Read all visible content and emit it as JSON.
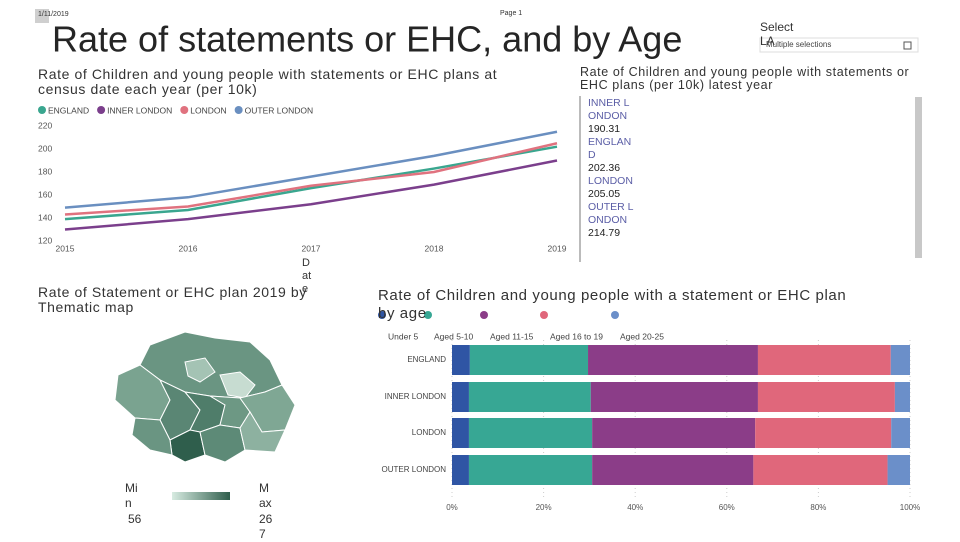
{
  "header": {
    "date": "1/11/2019",
    "page": "Page 1",
    "title": "Rate of statements or EHC, and by Age"
  },
  "slicer": {
    "label": "Select LA",
    "value": "Multiple selections"
  },
  "card": {
    "title": "Rate of Children and young people with statements or EHC plans (per 10k) latest year",
    "rows": [
      {
        "name": "INNER LONDON",
        "value": 190.31
      },
      {
        "name": "ENGLAND",
        "value": 202.36
      },
      {
        "name": "LONDON",
        "value": 205.05
      },
      {
        "name": "OUTER LONDON",
        "value": 214.79
      }
    ]
  },
  "map": {
    "title": "Rate of Statement or EHC plan 2019 by Thematic map",
    "min_label": "Min",
    "min": 56,
    "max_label": "Max",
    "max": 267
  },
  "chart_data": [
    {
      "type": "line",
      "title": "Rate of Children and young people with statements or EHC plans at census date each year (per 10k)",
      "x_label": "Date",
      "categories": [
        "2015",
        "2016",
        "2017",
        "2018",
        "2019"
      ],
      "series": [
        {
          "name": "ENGLAND",
          "color": "#3aa68f",
          "values": [
            139,
            147,
            166,
            183,
            202
          ]
        },
        {
          "name": "INNER LONDON",
          "color": "#7b3f8c",
          "values": [
            130,
            139,
            152,
            169,
            190
          ]
        },
        {
          "name": "LONDON",
          "color": "#e0727f",
          "values": [
            143,
            150,
            168,
            180,
            205
          ]
        },
        {
          "name": "OUTER LONDON",
          "color": "#6a8fc0",
          "values": [
            149,
            158,
            176,
            194,
            215
          ]
        }
      ],
      "ylim": [
        120,
        220
      ],
      "yticks": [
        120,
        140,
        160,
        180,
        200,
        220
      ],
      "grid": false
    },
    {
      "type": "stacked-bar-100",
      "title": "Rate of Children and young people with a statement or EHC plan by age",
      "categories": [
        "ENGLAND",
        "INNER LONDON",
        "LONDON",
        "OUTER LONDON"
      ],
      "series": [
        {
          "name": "Under 5",
          "color": "#2f55a4",
          "values": [
            3.9,
            3.7,
            3.7,
            3.7
          ]
        },
        {
          "name": "Aged 5-10",
          "color": "#37a794",
          "values": [
            25.8,
            26.6,
            26.9,
            26.9
          ]
        },
        {
          "name": "Aged 11-15",
          "color": "#8b3d88",
          "values": [
            37.1,
            36.5,
            35.6,
            35.2
          ]
        },
        {
          "name": "Aged 16 to 19",
          "color": "#e0677b",
          "values": [
            29.0,
            29.9,
            29.7,
            29.3
          ]
        },
        {
          "name": "Aged 20-25",
          "color": "#6b8fc9",
          "values": [
            4.2,
            3.3,
            4.1,
            4.9
          ]
        }
      ],
      "xlim": [
        0,
        100
      ],
      "xticks": [
        {
          "value": 0,
          "label": "0%"
        },
        {
          "value": 20,
          "label": "20%"
        },
        {
          "value": 40,
          "label": "40%"
        },
        {
          "value": 60,
          "label": "60%"
        },
        {
          "value": 80,
          "label": "80%"
        },
        {
          "value": 100,
          "label": "100%"
        }
      ],
      "grid": true
    }
  ]
}
